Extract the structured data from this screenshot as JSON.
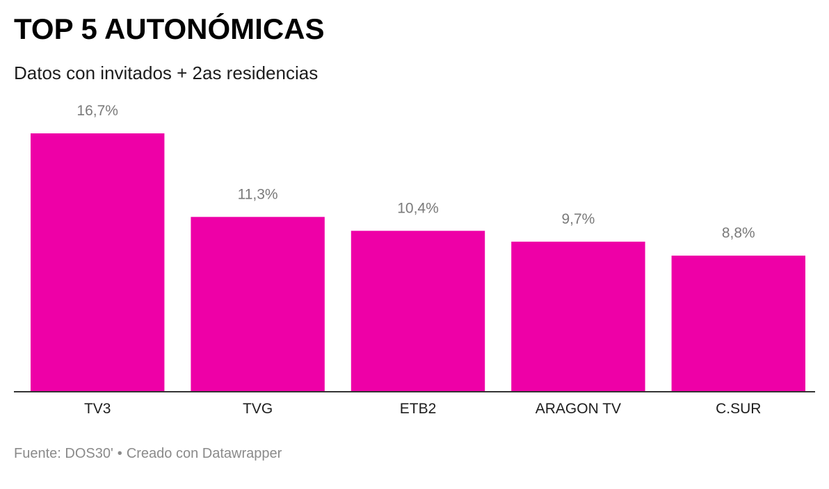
{
  "header": {
    "title": "TOP 5 AUTONÓMICAS",
    "subtitle": "Datos con invitados + 2as residencias"
  },
  "footer": {
    "source": "Fuente: DOS30'",
    "separator": "•",
    "credit": "Creado con Datawrapper"
  },
  "colors": {
    "bar": "#ee00a7",
    "value_label": "#7a7a7a",
    "category_label": "#1d1d1d",
    "baseline": "#333333"
  },
  "chart_data": {
    "type": "bar",
    "title": "TOP 5 AUTONÓMICAS",
    "subtitle": "Datos con invitados + 2as residencias",
    "categories": [
      "TV3",
      "TVG",
      "ETB2",
      "ARAGON TV",
      "C.SUR"
    ],
    "values": [
      16.7,
      11.3,
      10.4,
      9.7,
      8.8
    ],
    "value_labels": [
      "16,7%",
      "11,3%",
      "10,4%",
      "9,7%",
      "8,8%"
    ],
    "unit": "%",
    "ylim": [
      0,
      16.7
    ],
    "grid": false,
    "legend": "none"
  }
}
